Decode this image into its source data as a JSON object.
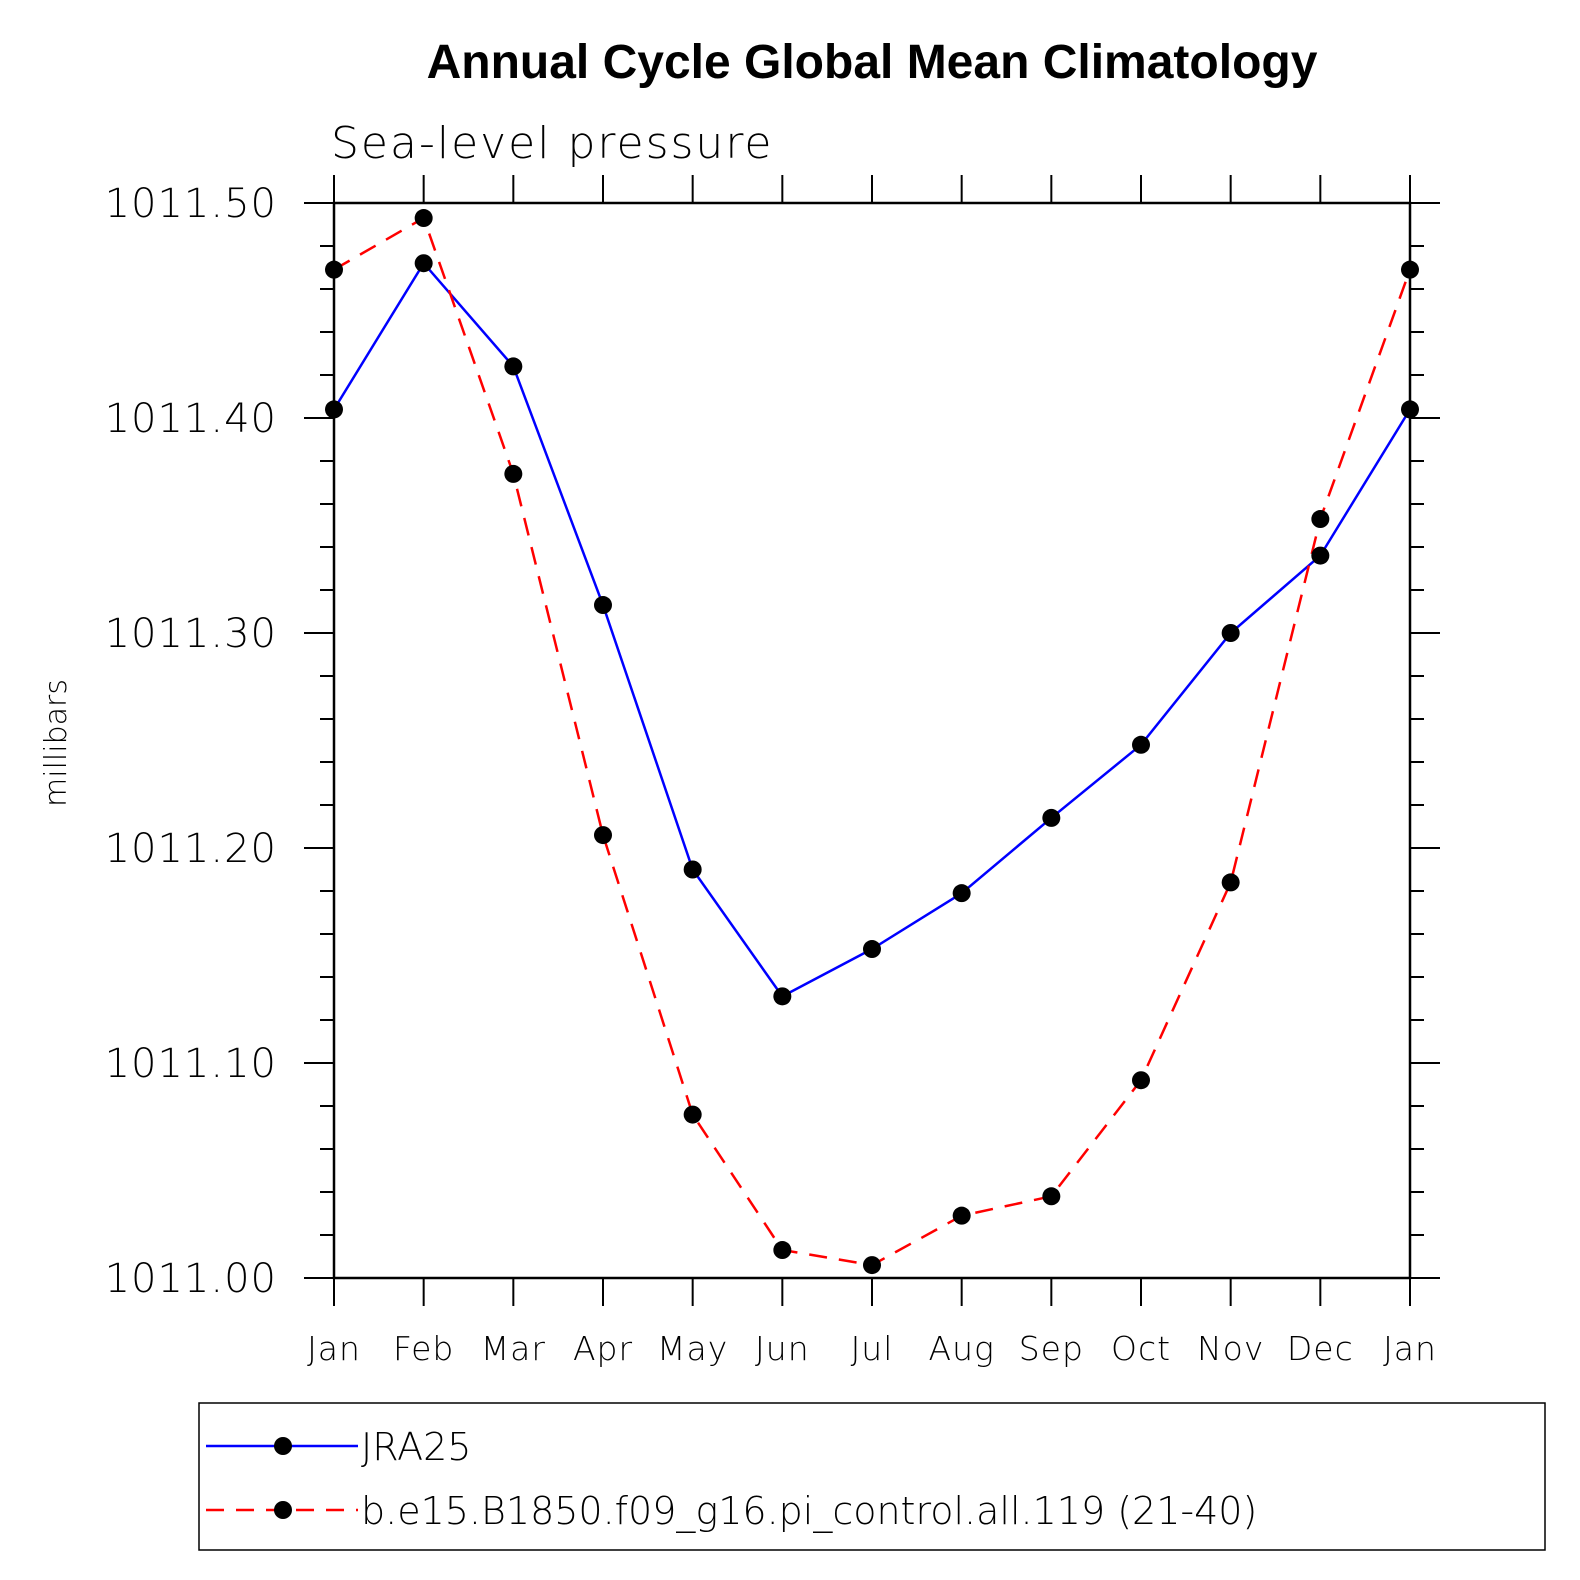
{
  "chart_data": {
    "type": "line",
    "title": "Annual Cycle Global Mean Climatology",
    "subtitle": "Sea-level pressure",
    "ylabel": "millibars",
    "xlabel": "",
    "ylim": [
      1011.0,
      1011.5
    ],
    "y_ticks": [
      "1011.00",
      "1011.10",
      "1011.20",
      "1011.30",
      "1011.40",
      "1011.50"
    ],
    "categories": [
      "Jan",
      "Feb",
      "Mar",
      "Apr",
      "May",
      "Jun",
      "Jul",
      "Aug",
      "Sep",
      "Oct",
      "Nov",
      "Dec",
      "Jan"
    ],
    "grid": false,
    "legend_position": "bottom",
    "series": [
      {
        "name": "JRA25",
        "color": "#0000ff",
        "line_style": "solid",
        "marker": "filled-circle",
        "values": [
          1011.404,
          1011.472,
          1011.424,
          1011.313,
          1011.19,
          1011.131,
          1011.153,
          1011.179,
          1011.214,
          1011.248,
          1011.3,
          1011.336,
          1011.404
        ]
      },
      {
        "name": "b.e15.B1850.f09_g16.pi_control.all.119 (21-40)",
        "color": "#ff0000",
        "line_style": "dashed",
        "marker": "filled-circle",
        "values": [
          1011.469,
          1011.493,
          1011.374,
          1011.206,
          1011.076,
          1011.013,
          1011.006,
          1011.029,
          1011.038,
          1011.092,
          1011.184,
          1011.353,
          1011.469
        ]
      }
    ]
  }
}
